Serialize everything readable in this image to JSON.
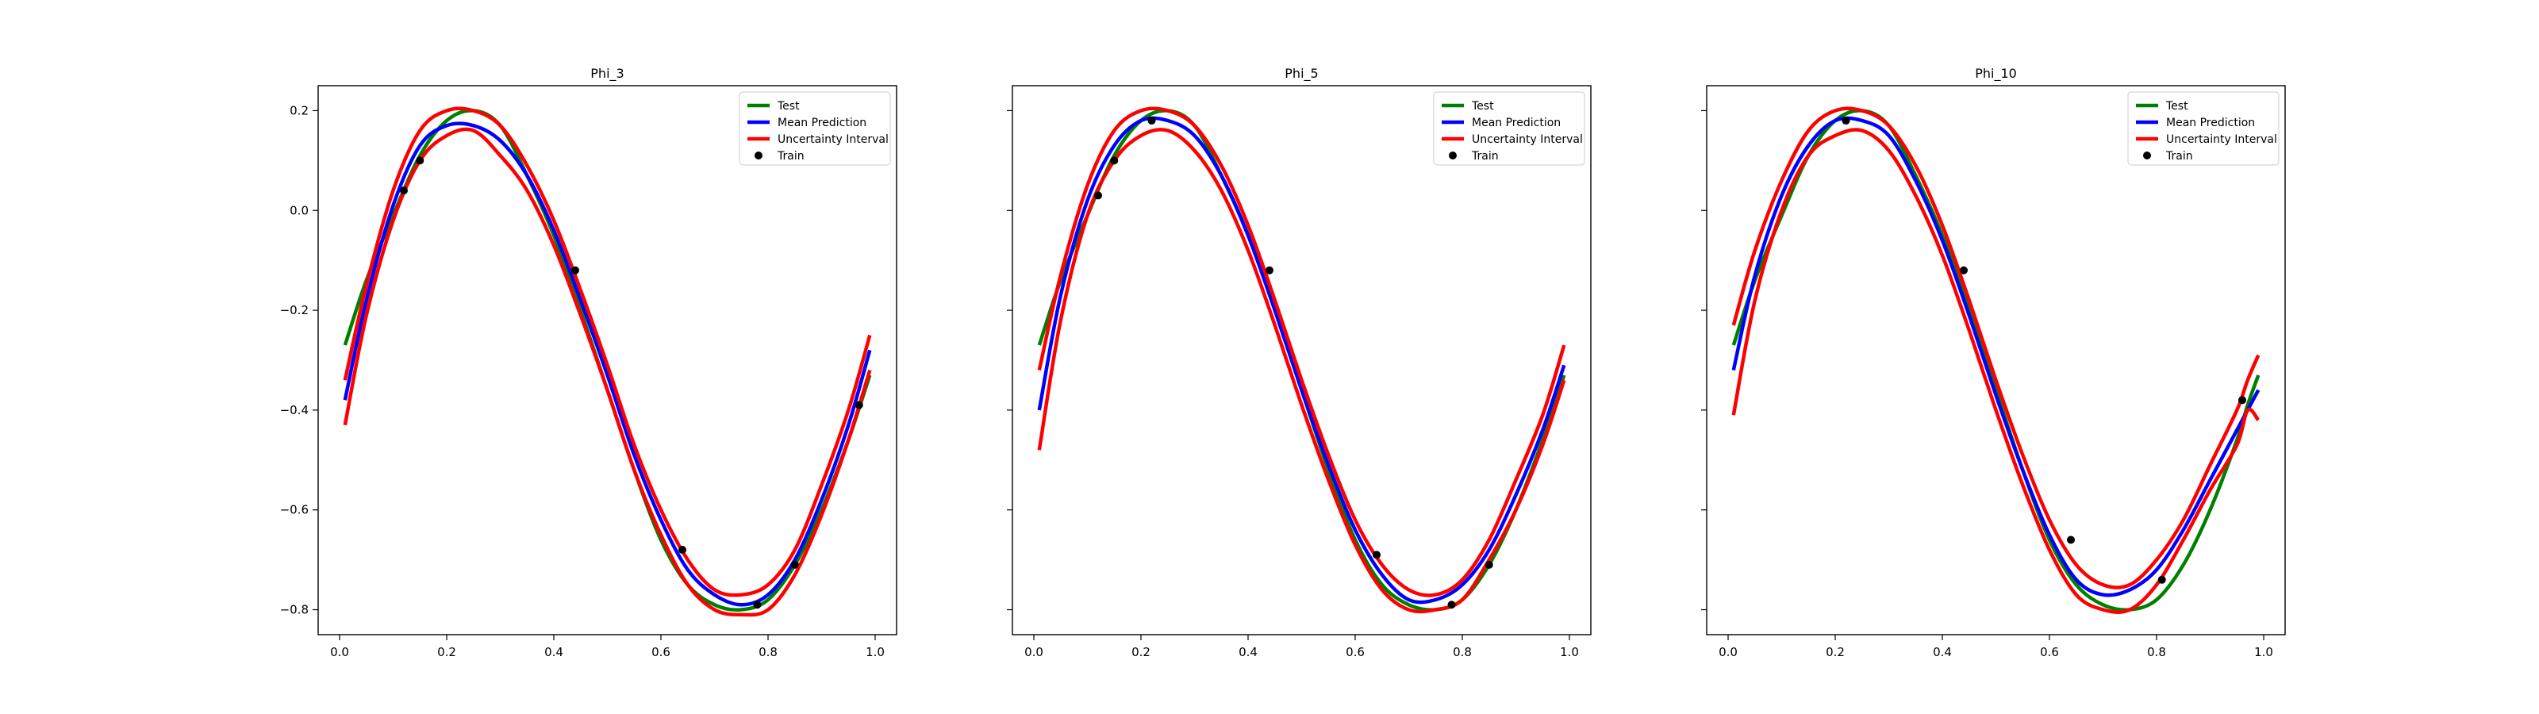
{
  "colors": {
    "test": "#008000",
    "mean": "#0000ff",
    "uncertainty": "#ff0000",
    "train": "#000000"
  },
  "chart_data": [
    {
      "type": "line",
      "title": "Phi_3",
      "xlabel": "",
      "ylabel": "",
      "xlim": [
        -0.04,
        1.04
      ],
      "ylim": [
        -0.85,
        0.25
      ],
      "xticks": [
        "0.0",
        "0.2",
        "0.4",
        "0.6",
        "0.8",
        "1.0"
      ],
      "yticks": [
        "0.2",
        "0.0",
        "−0.2",
        "−0.4",
        "−0.6",
        "−0.8"
      ],
      "legend": {
        "position": "top-right",
        "entries": [
          "Test",
          "Mean Prediction",
          "Uncertainty Interval",
          "Train"
        ]
      },
      "x": [
        0.01,
        0.05,
        0.1,
        0.15,
        0.2,
        0.25,
        0.3,
        0.35,
        0.4,
        0.45,
        0.5,
        0.55,
        0.6,
        0.65,
        0.7,
        0.75,
        0.8,
        0.85,
        0.9,
        0.95,
        0.99
      ],
      "series": [
        {
          "name": "Test",
          "values": [
            -0.27,
            -0.14,
            -0.01,
            0.11,
            0.18,
            0.2,
            0.17,
            0.07,
            -0.05,
            -0.2,
            -0.36,
            -0.52,
            -0.66,
            -0.75,
            -0.79,
            -0.8,
            -0.78,
            -0.71,
            -0.6,
            -0.46,
            -0.33
          ]
        },
        {
          "name": "Mean Prediction",
          "values": [
            -0.38,
            -0.18,
            0.01,
            0.13,
            0.17,
            0.17,
            0.14,
            0.07,
            -0.04,
            -0.18,
            -0.33,
            -0.49,
            -0.62,
            -0.72,
            -0.77,
            -0.79,
            -0.77,
            -0.7,
            -0.58,
            -0.43,
            -0.28
          ]
        },
        {
          "name": "Uncertainty Interval (upper)",
          "values": [
            -0.34,
            -0.15,
            0.04,
            0.16,
            0.2,
            0.2,
            0.17,
            0.09,
            -0.02,
            -0.16,
            -0.31,
            -0.47,
            -0.6,
            -0.7,
            -0.76,
            -0.77,
            -0.75,
            -0.68,
            -0.55,
            -0.4,
            -0.25
          ]
        },
        {
          "name": "Uncertainty Interval (lower)",
          "values": [
            -0.43,
            -0.21,
            -0.02,
            0.1,
            0.15,
            0.16,
            0.11,
            0.04,
            -0.07,
            -0.21,
            -0.36,
            -0.52,
            -0.65,
            -0.75,
            -0.8,
            -0.81,
            -0.8,
            -0.73,
            -0.61,
            -0.46,
            -0.32
          ]
        }
      ],
      "train": {
        "x": [
          0.12,
          0.15,
          0.44,
          0.64,
          0.78,
          0.85,
          0.97
        ],
        "y": [
          0.04,
          0.1,
          -0.12,
          -0.68,
          -0.79,
          -0.71,
          -0.39
        ]
      }
    },
    {
      "type": "line",
      "title": "Phi_5",
      "xlabel": "",
      "ylabel": "",
      "xlim": [
        -0.04,
        1.04
      ],
      "ylim": [
        -0.85,
        0.25
      ],
      "xticks": [
        "0.0",
        "0.2",
        "0.4",
        "0.6",
        "0.8",
        "1.0"
      ],
      "yticks": [],
      "legend": {
        "position": "top-right",
        "entries": [
          "Test",
          "Mean Prediction",
          "Uncertainty Interval",
          "Train"
        ]
      },
      "x": [
        0.01,
        0.05,
        0.1,
        0.15,
        0.2,
        0.25,
        0.3,
        0.35,
        0.4,
        0.45,
        0.5,
        0.55,
        0.6,
        0.65,
        0.7,
        0.75,
        0.8,
        0.85,
        0.9,
        0.95,
        0.99
      ],
      "series": [
        {
          "name": "Test",
          "values": [
            -0.27,
            -0.14,
            -0.01,
            0.11,
            0.18,
            0.2,
            0.17,
            0.07,
            -0.05,
            -0.2,
            -0.36,
            -0.52,
            -0.66,
            -0.75,
            -0.79,
            -0.8,
            -0.78,
            -0.71,
            -0.6,
            -0.46,
            -0.33
          ]
        },
        {
          "name": "Mean Prediction",
          "values": [
            -0.4,
            -0.17,
            0.02,
            0.13,
            0.18,
            0.18,
            0.15,
            0.07,
            -0.05,
            -0.2,
            -0.36,
            -0.51,
            -0.64,
            -0.73,
            -0.78,
            -0.78,
            -0.75,
            -0.68,
            -0.57,
            -0.44,
            -0.31
          ]
        },
        {
          "name": "Uncertainty Interval (upper)",
          "values": [
            -0.32,
            -0.13,
            0.05,
            0.16,
            0.2,
            0.2,
            0.17,
            0.09,
            -0.03,
            -0.18,
            -0.34,
            -0.49,
            -0.62,
            -0.71,
            -0.76,
            -0.77,
            -0.74,
            -0.66,
            -0.54,
            -0.41,
            -0.27
          ]
        },
        {
          "name": "Uncertainty Interval (lower)",
          "values": [
            -0.48,
            -0.22,
            -0.01,
            0.1,
            0.15,
            0.16,
            0.12,
            0.04,
            -0.08,
            -0.23,
            -0.39,
            -0.54,
            -0.67,
            -0.76,
            -0.8,
            -0.8,
            -0.78,
            -0.7,
            -0.6,
            -0.47,
            -0.34
          ]
        }
      ],
      "train": {
        "x": [
          0.12,
          0.15,
          0.22,
          0.44,
          0.64,
          0.78,
          0.85
        ],
        "y": [
          0.03,
          0.1,
          0.18,
          -0.12,
          -0.69,
          -0.79,
          -0.71
        ]
      }
    },
    {
      "type": "line",
      "title": "Phi_10",
      "xlabel": "",
      "ylabel": "",
      "xlim": [
        -0.04,
        1.04
      ],
      "ylim": [
        -0.85,
        0.25
      ],
      "xticks": [
        "0.0",
        "0.2",
        "0.4",
        "0.6",
        "0.8",
        "1.0"
      ],
      "yticks": [],
      "legend": {
        "position": "top-right",
        "entries": [
          "Test",
          "Mean Prediction",
          "Uncertainty Interval",
          "Train"
        ]
      },
      "x": [
        0.01,
        0.05,
        0.1,
        0.15,
        0.2,
        0.25,
        0.3,
        0.35,
        0.4,
        0.45,
        0.5,
        0.55,
        0.6,
        0.65,
        0.7,
        0.75,
        0.8,
        0.85,
        0.9,
        0.95,
        0.97,
        0.99
      ],
      "series": [
        {
          "name": "Test",
          "values": [
            -0.27,
            -0.14,
            -0.01,
            0.11,
            0.18,
            0.2,
            0.17,
            0.07,
            -0.05,
            -0.2,
            -0.36,
            -0.52,
            -0.66,
            -0.75,
            -0.79,
            -0.8,
            -0.78,
            -0.71,
            -0.6,
            -0.46,
            -0.39,
            -0.33
          ]
        },
        {
          "name": "Mean Prediction",
          "values": [
            -0.32,
            -0.13,
            0.03,
            0.13,
            0.18,
            0.18,
            0.15,
            0.06,
            -0.06,
            -0.21,
            -0.37,
            -0.52,
            -0.65,
            -0.74,
            -0.77,
            -0.76,
            -0.72,
            -0.64,
            -0.54,
            -0.44,
            -0.4,
            -0.36
          ]
        },
        {
          "name": "Uncertainty Interval (upper)",
          "values": [
            -0.23,
            -0.08,
            0.06,
            0.16,
            0.2,
            0.2,
            0.17,
            0.09,
            -0.03,
            -0.18,
            -0.34,
            -0.49,
            -0.62,
            -0.71,
            -0.75,
            -0.75,
            -0.7,
            -0.62,
            -0.51,
            -0.4,
            -0.34,
            -0.29
          ]
        },
        {
          "name": "Uncertainty Interval (lower)",
          "values": [
            -0.41,
            -0.18,
            0,
            0.11,
            0.15,
            0.16,
            0.12,
            0.03,
            -0.09,
            -0.24,
            -0.4,
            -0.55,
            -0.68,
            -0.77,
            -0.8,
            -0.8,
            -0.75,
            -0.66,
            -0.56,
            -0.47,
            -0.4,
            -0.42
          ]
        }
      ],
      "train": {
        "x": [
          0.22,
          0.44,
          0.64,
          0.81,
          0.96
        ],
        "y": [
          0.18,
          -0.12,
          -0.66,
          -0.74,
          -0.38
        ]
      }
    }
  ]
}
